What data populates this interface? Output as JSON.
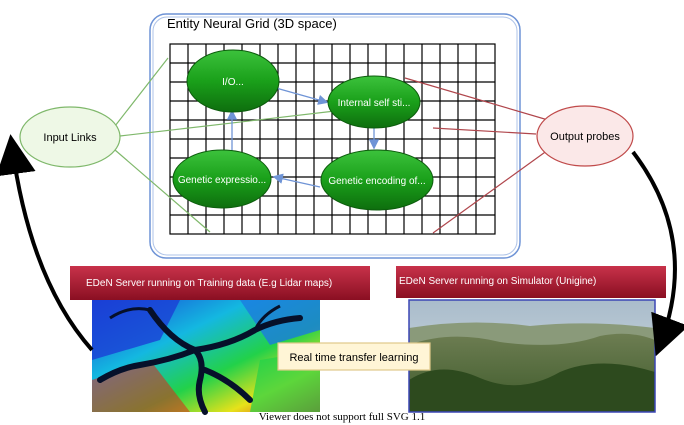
{
  "grid": {
    "title": "Entity Neural Grid (3D space)"
  },
  "nodes": {
    "io": "I/O...",
    "internal_self": "Internal self sti...",
    "genetic_expression": "Genetic expressio...",
    "genetic_encoding": "Genetic encoding of..."
  },
  "input_links": "Input Links",
  "output_probes": "Output probes",
  "banners": {
    "training": "EDeN Server running on Training data (E.g Lidar maps)",
    "simulator": "EDeN Server running on Simulator (Unigine)"
  },
  "transfer_label": "Real time transfer learning",
  "footer": "Viewer does not support full SVG 1.1",
  "colors": {
    "node_green": "#1a9e1a",
    "grid_frame": "#6f94d6",
    "input_node_fill": "#eef8e6",
    "input_node_stroke": "#7fb86b",
    "output_node_fill": "#fbe8e8",
    "output_node_stroke": "#c04a4a",
    "banner_red": "#b11d35",
    "transfer_box": "#fff5d6"
  },
  "icons": {
    "lidar_map": "lidar-map-image",
    "terrain": "terrain-image"
  }
}
